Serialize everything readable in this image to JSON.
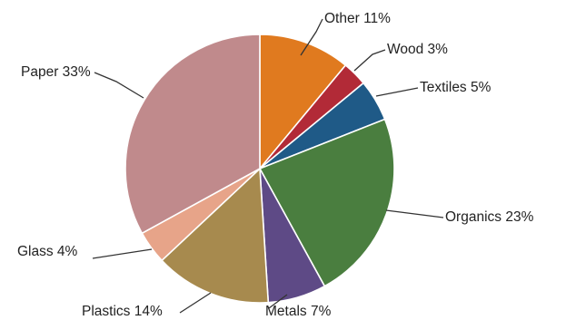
{
  "chart_data": {
    "type": "pie",
    "title": "",
    "start": "12 o'clock",
    "direction": "clockwise",
    "slices": [
      {
        "key": "other",
        "label": "Other 11%",
        "category": "Other",
        "value": 11,
        "color": "#E07A1F"
      },
      {
        "key": "wood",
        "label": "Wood 3%",
        "category": "Wood",
        "value": 3,
        "color": "#B22A37"
      },
      {
        "key": "textiles",
        "label": "Textiles 5%",
        "category": "Textiles",
        "value": 5,
        "color": "#1F5A87"
      },
      {
        "key": "organics",
        "label": "Organics 23%",
        "category": "Organics",
        "value": 23,
        "color": "#4A7E3F"
      },
      {
        "key": "metals",
        "label": "Metals 7%",
        "category": "Metals",
        "value": 7,
        "color": "#5E4A86"
      },
      {
        "key": "plastics",
        "label": "Plastics 14%",
        "category": "Plastics",
        "value": 14,
        "color": "#A78A4E"
      },
      {
        "key": "glass",
        "label": "Glass 4%",
        "category": "Glass",
        "value": 4,
        "color": "#E7A489"
      },
      {
        "key": "paper",
        "label": "Paper 33%",
        "category": "Paper",
        "value": 33,
        "color": "#C08A8C"
      }
    ]
  }
}
